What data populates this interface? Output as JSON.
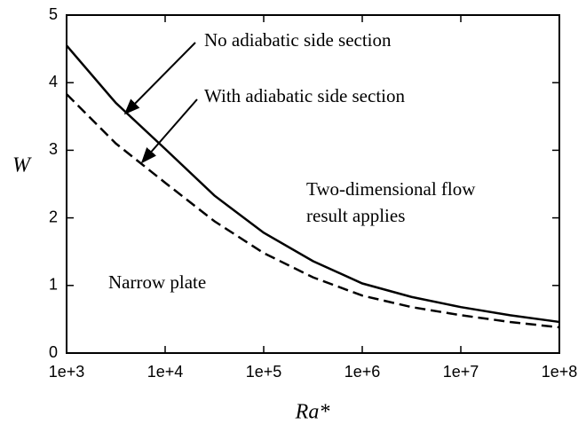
{
  "chart_data": {
    "type": "line",
    "x_label": "Ra*",
    "y_label": "W",
    "annotations": [
      "Two-dimensional flow",
      "result applies",
      "Narrow plate"
    ],
    "x": [
      1000,
      3162,
      10000,
      31623,
      100000,
      316228,
      1000000,
      3162278,
      10000000,
      31622777,
      100000000
    ],
    "series": [
      {
        "name": "No adiabatic side section",
        "color": "#000000",
        "dash": false,
        "values": [
          4.55,
          3.7,
          3.02,
          2.33,
          1.78,
          1.36,
          1.03,
          0.83,
          0.68,
          0.56,
          0.46
        ]
      },
      {
        "name": "With adiabatic side section",
        "color": "#000000",
        "dash": true,
        "values": [
          3.83,
          3.1,
          2.52,
          1.95,
          1.48,
          1.12,
          0.85,
          0.68,
          0.56,
          0.46,
          0.38
        ]
      }
    ],
    "xscale": "log",
    "xlim": [
      1000,
      100000000
    ],
    "xticks": [
      {
        "value": 1000,
        "label": "1e+3"
      },
      {
        "value": 10000,
        "label": "1e+4"
      },
      {
        "value": 100000,
        "label": "1e+5"
      },
      {
        "value": 1000000,
        "label": "1e+6"
      },
      {
        "value": 10000000,
        "label": "1e+7"
      },
      {
        "value": 100000000,
        "label": "1e+8"
      }
    ],
    "ylim": [
      0,
      5
    ],
    "yticks": [
      0,
      1,
      2,
      3,
      4,
      5
    ],
    "grid": false
  }
}
